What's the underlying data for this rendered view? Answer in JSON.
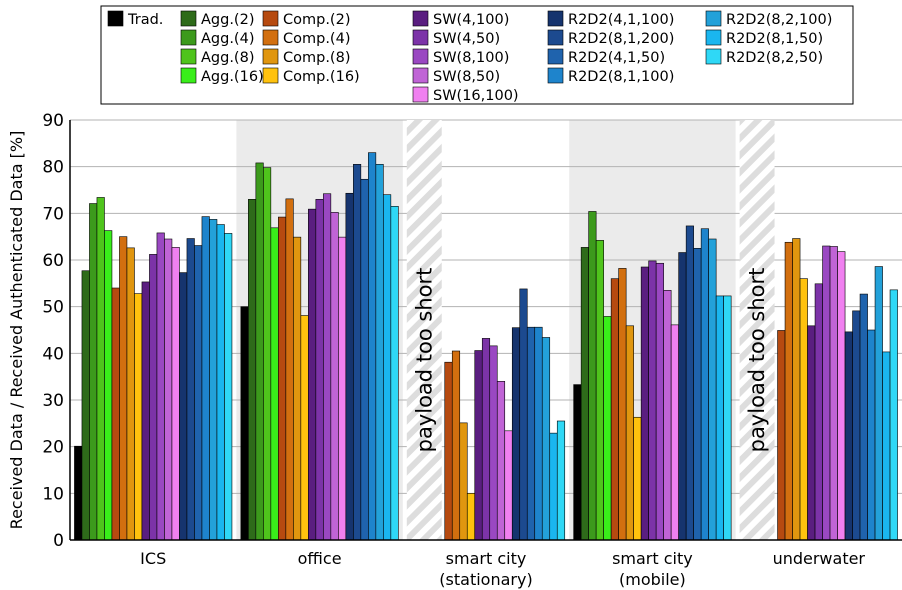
{
  "chart_data": {
    "type": "bar",
    "ylabel": "Received Data / Received Authenticated Data [%]",
    "ylim": [
      0,
      90
    ],
    "yticks": [
      0,
      10,
      20,
      30,
      40,
      50,
      60,
      70,
      80,
      90
    ],
    "grid": true,
    "legend_position": "top",
    "categories": [
      "ICS",
      "office",
      "smart city\n(stationary)",
      "smart city\n(mobile)",
      "underwater"
    ],
    "not_applicable_label": "payload too short",
    "series": [
      {
        "name": "Trad.",
        "color": "#000000",
        "values": [
          20.1,
          50.0,
          null,
          33.3,
          null
        ]
      },
      {
        "name": "Agg.(2)",
        "color": "#2e6b1a",
        "values": [
          57.7,
          73.0,
          null,
          62.7,
          null
        ]
      },
      {
        "name": "Agg.(4)",
        "color": "#3c9a1c",
        "values": [
          72.1,
          80.8,
          null,
          70.4,
          null
        ]
      },
      {
        "name": "Agg.(8)",
        "color": "#4fc41c",
        "values": [
          73.4,
          79.8,
          null,
          64.2,
          null
        ]
      },
      {
        "name": "Agg.(16)",
        "color": "#39ee1a",
        "values": [
          66.3,
          66.9,
          null,
          47.9,
          null
        ]
      },
      {
        "name": "Comp.(2)",
        "color": "#b64a10",
        "values": [
          54.0,
          69.2,
          38.1,
          56.0,
          44.9
        ]
      },
      {
        "name": "Comp.(4)",
        "color": "#d26f0f",
        "values": [
          65.0,
          73.1,
          40.5,
          58.2,
          63.8
        ]
      },
      {
        "name": "Comp.(8)",
        "color": "#e0960f",
        "values": [
          62.6,
          64.9,
          25.1,
          45.9,
          64.6
        ]
      },
      {
        "name": "Comp.(16)",
        "color": "#ffc20e",
        "values": [
          52.8,
          48.1,
          10.0,
          26.3,
          56.0
        ]
      },
      {
        "name": "SW(4,100)",
        "color": "#5a1e80",
        "values": [
          55.3,
          70.9,
          40.6,
          58.5,
          45.9
        ]
      },
      {
        "name": "SW(4,50)",
        "color": "#7c33a8",
        "values": [
          61.2,
          73.0,
          43.2,
          59.8,
          54.9
        ]
      },
      {
        "name": "SW(8,100)",
        "color": "#9a48c2",
        "values": [
          65.8,
          74.2,
          41.6,
          59.3,
          63.0
        ]
      },
      {
        "name": "SW(8,50)",
        "color": "#c064d6",
        "values": [
          64.5,
          70.2,
          34.0,
          53.5,
          62.9
        ]
      },
      {
        "name": "SW(16,100)",
        "color": "#f080f0",
        "values": [
          62.7,
          64.9,
          23.4,
          46.1,
          61.8
        ]
      },
      {
        "name": "R2D2(4,1,100)",
        "color": "#16346e",
        "values": [
          57.3,
          74.3,
          45.5,
          61.6,
          44.6
        ]
      },
      {
        "name": "R2D2(8,1,200)",
        "color": "#1c4a8f",
        "values": [
          64.6,
          80.5,
          53.8,
          67.3,
          49.1
        ]
      },
      {
        "name": "R2D2(4,1,50)",
        "color": "#1f63ad",
        "values": [
          63.1,
          77.3,
          45.6,
          62.5,
          52.7
        ]
      },
      {
        "name": "R2D2(8,1,100)",
        "color": "#1e84cc",
        "values": [
          69.3,
          83.0,
          45.6,
          66.7,
          45.0
        ]
      },
      {
        "name": "R2D2(8,2,100)",
        "color": "#23a1d9",
        "values": [
          68.7,
          80.5,
          43.4,
          64.5,
          58.6
        ]
      },
      {
        "name": "R2D2(8,1,50)",
        "color": "#1ab6ef",
        "values": [
          67.6,
          74.0,
          22.9,
          52.3,
          40.3
        ]
      },
      {
        "name": "R2D2(8,2,50)",
        "color": "#2fd8f6",
        "values": [
          65.7,
          71.5,
          25.5,
          52.3,
          53.6
        ]
      }
    ]
  }
}
